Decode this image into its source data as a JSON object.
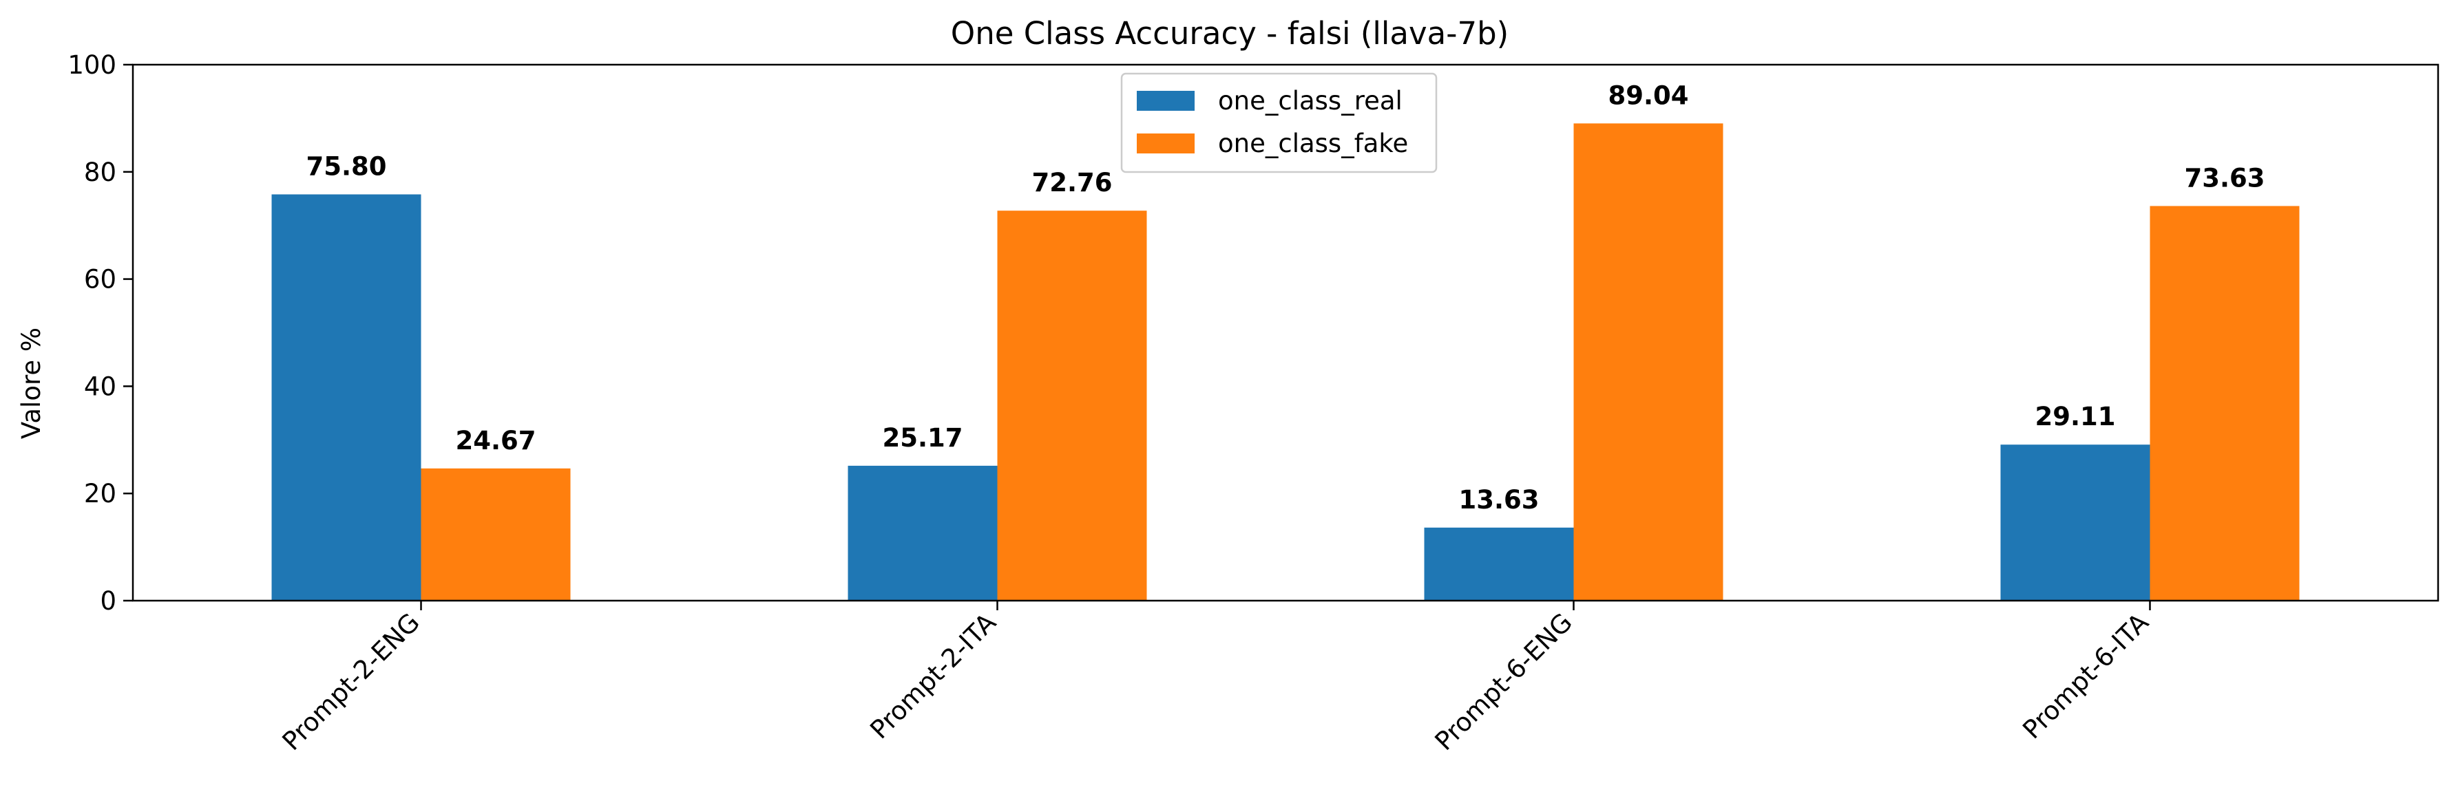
{
  "chart_data": {
    "type": "bar",
    "title": "One Class Accuracy - falsi (llava-7b)",
    "xlabel": "",
    "ylabel": "Valore %",
    "ylim": [
      0,
      100
    ],
    "yticks": [
      0,
      20,
      40,
      60,
      80,
      100
    ],
    "categories": [
      "Prompt-2-ENG",
      "Prompt-2-ITA",
      "Prompt-6-ENG",
      "Prompt-6-ITA"
    ],
    "series": [
      {
        "name": "one_class_real",
        "color": "#1f77b4",
        "values": [
          75.8,
          25.17,
          13.63,
          29.11
        ],
        "labels": [
          "75.80",
          "25.17",
          "13.63",
          "29.11"
        ]
      },
      {
        "name": "one_class_fake",
        "color": "#ff7f0e",
        "values": [
          24.67,
          72.76,
          89.04,
          73.63
        ],
        "labels": [
          "24.67",
          "72.76",
          "89.04",
          "73.63"
        ]
      }
    ],
    "legend": "top-center",
    "grid": false
  }
}
